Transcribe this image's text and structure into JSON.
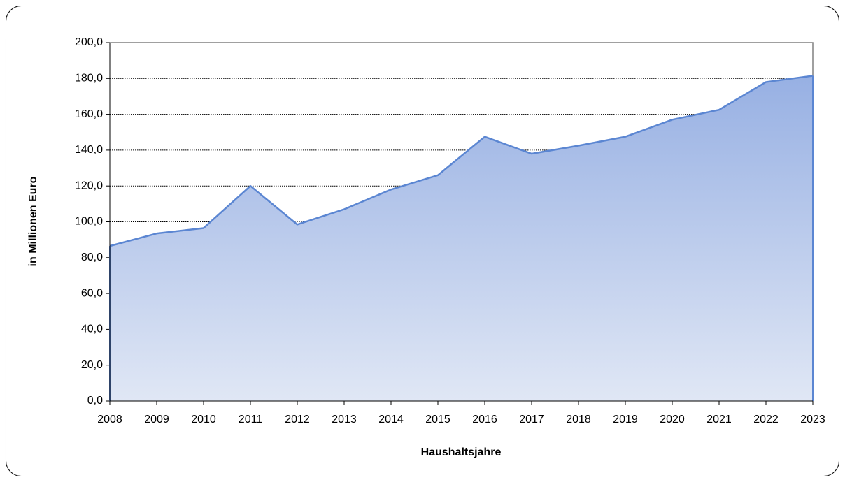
{
  "chart_data": {
    "type": "area",
    "x_label": "Haushaltsjahre",
    "y_label": "in Millionen Euro",
    "categories": [
      "2008",
      "2009",
      "2010",
      "2011",
      "2012",
      "2013",
      "2014",
      "2015",
      "2016",
      "2017",
      "2018",
      "2019",
      "2020",
      "2021",
      "2022",
      "2023"
    ],
    "values": [
      86.5,
      93.5,
      96.5,
      120,
      98.5,
      107,
      118,
      126,
      147.5,
      138,
      142.5,
      147.5,
      157,
      162.5,
      178,
      181.5
    ],
    "color": "#5b86d2",
    "ylim": [
      0,
      200
    ],
    "yticks": [
      {
        "value": 0,
        "label": "0,0"
      },
      {
        "value": 20,
        "label": "20,0"
      },
      {
        "value": 40,
        "label": "40,0"
      },
      {
        "value": 60,
        "label": "60,0"
      },
      {
        "value": 80,
        "label": "80,0"
      },
      {
        "value": 100,
        "label": "100,0"
      },
      {
        "value": 120,
        "label": "120,0"
      },
      {
        "value": 140,
        "label": "140,0"
      },
      {
        "value": 160,
        "label": "160,0"
      },
      {
        "value": 180,
        "label": "180,0"
      },
      {
        "value": 200,
        "label": "200,0"
      }
    ],
    "grid": true
  }
}
